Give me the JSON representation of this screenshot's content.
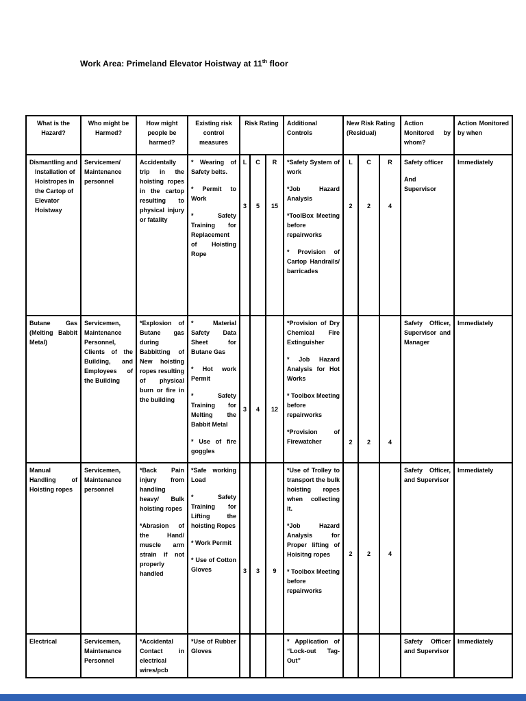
{
  "page": {
    "title_prefix": "Work Area: Primeland Elevator Hoistway at 11",
    "title_sup": "th",
    "title_suffix": " floor",
    "bottom_bar_color": "#2f62b5"
  },
  "table": {
    "headers": {
      "hazard": "What is the Hazard?",
      "who": "Who might be Harmed?",
      "how": "How might people be harmed?",
      "existing": "Existing risk control measures",
      "risk_rating": "Risk Rating",
      "additional": "Additional Controls",
      "new_risk_rating": "New Risk Rating (Residual)",
      "monitored_whom": "Action Monitored by whom?",
      "monitored_when": "Action Monitored by when"
    },
    "sublabels": [
      "L",
      "C",
      "R"
    ],
    "rows": [
      {
        "hazard": "Dismantling and Installation of Hoistropes in the Cartop of Elevator Hoistway",
        "who": "Servicemen/ Maintenance personnel",
        "how": [
          "Accidentally trip in the hoisting ropes in the cartop resulting to physical injury or fatality"
        ],
        "existing": [
          "* Wearing of Safety belts.",
          "* Permit to Work",
          "* Safety Training for Replacement of Hoisting Rope"
        ],
        "show_rating_sublabels": true,
        "risk": [
          "3",
          "5",
          "15"
        ],
        "additional": [
          "*Safety System of work",
          "*Job Hazard Analysis",
          "*ToolBox Meeting before repairworks",
          "* Provision of Cartop Handrails/ barricades"
        ],
        "new_risk": [
          "2",
          "2",
          "4"
        ],
        "whom": [
          "Safety officer",
          "And\nSupervisor"
        ],
        "when": "Immediately"
      },
      {
        "hazard": "Butane Gas (Melting Babbit Metal)",
        "who": "Servicemen, Maintenance Personnel, Clients of the Building, and Employees of the Building",
        "how": [
          "*Explosion of Butane gas during Babbitting of New hoisting ropes resulting of physical burn or fire in the building"
        ],
        "existing": [
          "* Material Safety Data Sheet for Butane Gas",
          "* Hot work Permit",
          "* Safety Training for Melting the Babbit Metal",
          "* Use of fire goggles"
        ],
        "show_rating_sublabels": false,
        "risk": [
          "3",
          "4",
          "12"
        ],
        "additional": [
          "*Provision of Dry Chemical Fire Extinguisher",
          "* Job Hazard Analysis for Hot Works",
          "* Toolbox Meeting before repairworks",
          "*Provision of Firewatcher"
        ],
        "new_risk": [
          "2",
          "2",
          "4"
        ],
        "whom": [
          "Safety Officer, Supervisor and Manager"
        ],
        "when": "Immediately"
      },
      {
        "hazard": "Manual Handling of Hoisting ropes",
        "who": "Servicemen, Maintenance personnel",
        "how": [
          "*Back Pain injury from handling heavy/ Bulk hoisting ropes",
          "*Abrasion of the Hand/ muscle arm strain if not properly handled"
        ],
        "existing": [
          "*Safe working Load",
          "* Safety Training for Lifting the hoisting Ropes",
          "* Work Permit",
          "* Use of Cotton Gloves"
        ],
        "show_rating_sublabels": false,
        "risk": [
          "3",
          "3",
          "9"
        ],
        "additional": [
          "*Use of Trolley to transport the bulk hoisting ropes when collecting it.",
          "*Job Hazard Analysis for Proper lifting of Hoisitng ropes",
          "* Toolbox Meeting before repairworks"
        ],
        "new_risk": [
          "2",
          "2",
          "4"
        ],
        "whom": [
          "Safety Officer, and Supervisor"
        ],
        "when": "Immediately"
      },
      {
        "hazard": "Electrical",
        "who": "Servicemen, Maintenance Personnel",
        "how": [
          "*Accidental Contact in electrical wires/pcb"
        ],
        "existing": [
          "*Use of Rubber Gloves"
        ],
        "show_rating_sublabels": false,
        "risk": [
          "",
          "",
          ""
        ],
        "additional": [
          "* Application of “Lock-out Tag-Out”"
        ],
        "new_risk": [
          "",
          "",
          ""
        ],
        "whom": [
          "Safety Officer and Supervisor"
        ],
        "when": "Immediately"
      }
    ]
  }
}
